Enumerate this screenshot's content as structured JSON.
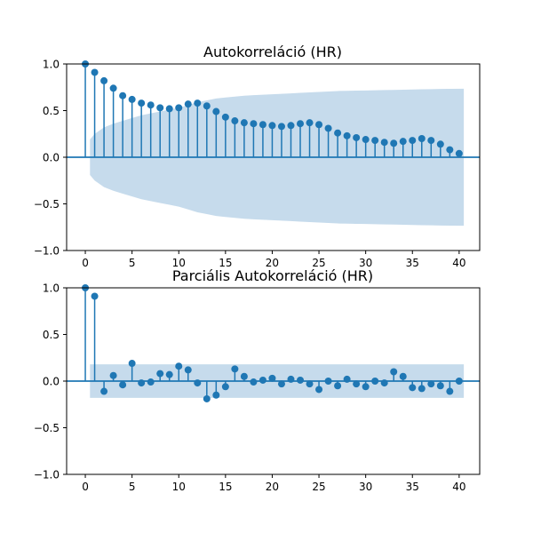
{
  "colors": {
    "series": "#1f77b4",
    "confidence_band": "#c6dbec",
    "axis": "#000000"
  },
  "chart_data": [
    {
      "type": "stem",
      "title": "Autokorreláció (HR)",
      "xlabel": "",
      "ylabel": "",
      "xlim": [
        -2,
        42.2
      ],
      "ylim": [
        -1.0,
        1.0
      ],
      "xticks": [
        0,
        5,
        10,
        15,
        20,
        25,
        30,
        35,
        40
      ],
      "yticks": [
        -1.0,
        -0.5,
        0.0,
        0.5,
        1.0
      ],
      "ytick_labels": [
        "−1.0",
        "−0.5",
        "0.0",
        "0.5",
        "1.0"
      ],
      "grid": false,
      "series": [
        {
          "lags": [
            0,
            1,
            2,
            3,
            4,
            5,
            6,
            7,
            8,
            9,
            10,
            11,
            12,
            13,
            14,
            15,
            16,
            17,
            18,
            19,
            20,
            21,
            22,
            23,
            24,
            25,
            26,
            27,
            28,
            29,
            30,
            31,
            32,
            33,
            34,
            35,
            36,
            37,
            38,
            39,
            40
          ],
          "values": [
            1.0,
            0.91,
            0.82,
            0.74,
            0.66,
            0.62,
            0.58,
            0.56,
            0.53,
            0.52,
            0.53,
            0.57,
            0.58,
            0.55,
            0.49,
            0.43,
            0.39,
            0.37,
            0.36,
            0.35,
            0.34,
            0.33,
            0.34,
            0.36,
            0.37,
            0.35,
            0.31,
            0.26,
            0.23,
            0.21,
            0.19,
            0.18,
            0.16,
            0.15,
            0.17,
            0.18,
            0.2,
            0.18,
            0.14,
            0.08,
            0.04
          ]
        }
      ],
      "confidence_band": {
        "lags": [
          0.5,
          1,
          2,
          3,
          4,
          5,
          6,
          7,
          8,
          9,
          10,
          11,
          12,
          13,
          14,
          15,
          16,
          17,
          18,
          19,
          20,
          21,
          22,
          23,
          24,
          25,
          26,
          27,
          28,
          29,
          30,
          31,
          32,
          33,
          34,
          35,
          36,
          37,
          38,
          39,
          40.5
        ],
        "upper": [
          0.19,
          0.25,
          0.32,
          0.36,
          0.39,
          0.42,
          0.45,
          0.47,
          0.49,
          0.51,
          0.53,
          0.56,
          0.59,
          0.61,
          0.63,
          0.64,
          0.65,
          0.66,
          0.665,
          0.67,
          0.675,
          0.68,
          0.685,
          0.69,
          0.695,
          0.7,
          0.705,
          0.71,
          0.712,
          0.714,
          0.716,
          0.718,
          0.72,
          0.722,
          0.724,
          0.726,
          0.728,
          0.73,
          0.732,
          0.733,
          0.734
        ]
      }
    },
    {
      "type": "stem",
      "title": "Parciális Autokorreláció (HR)",
      "xlabel": "",
      "ylabel": "",
      "xlim": [
        -2,
        42.2
      ],
      "ylim": [
        -1.0,
        1.0
      ],
      "xticks": [
        0,
        5,
        10,
        15,
        20,
        25,
        30,
        35,
        40
      ],
      "yticks": [
        -1.0,
        -0.5,
        0.0,
        0.5,
        1.0
      ],
      "ytick_labels": [
        "−1.0",
        "−0.5",
        "0.0",
        "0.5",
        "1.0"
      ],
      "grid": false,
      "series": [
        {
          "lags": [
            0,
            1,
            2,
            3,
            4,
            5,
            6,
            7,
            8,
            9,
            10,
            11,
            12,
            13,
            14,
            15,
            16,
            17,
            18,
            19,
            20,
            21,
            22,
            23,
            24,
            25,
            26,
            27,
            28,
            29,
            30,
            31,
            32,
            33,
            34,
            35,
            36,
            37,
            38,
            39,
            40
          ],
          "values": [
            1.0,
            0.91,
            -0.11,
            0.06,
            -0.04,
            0.19,
            -0.02,
            -0.01,
            0.08,
            0.07,
            0.16,
            0.12,
            -0.02,
            -0.19,
            -0.15,
            -0.06,
            0.13,
            0.05,
            -0.01,
            0.01,
            0.03,
            -0.03,
            0.02,
            0.01,
            -0.03,
            -0.09,
            0.0,
            -0.05,
            0.02,
            -0.03,
            -0.06,
            0.0,
            -0.02,
            0.1,
            0.05,
            -0.07,
            -0.08,
            -0.03,
            -0.05,
            -0.11,
            0.0
          ]
        }
      ],
      "confidence_band": {
        "lags": [
          0.5,
          40.5
        ],
        "upper": [
          0.18,
          0.18
        ]
      }
    }
  ]
}
